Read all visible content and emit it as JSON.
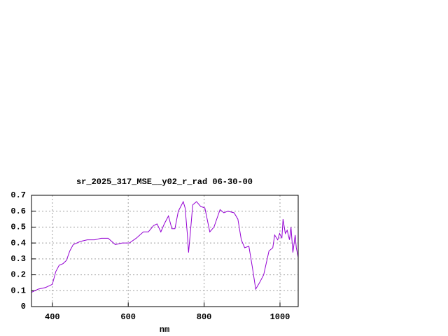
{
  "chart_data": {
    "type": "line",
    "title": "sr_2025_317_MSE__y02_r_rad 06-30-00",
    "xlabel": "nm",
    "x": [
      345,
      363,
      382,
      391,
      400,
      409,
      418,
      428,
      437,
      446,
      455,
      474,
      492,
      511,
      529,
      547,
      566,
      584,
      603,
      621,
      640,
      653,
      667,
      676,
      686,
      695,
      706,
      715,
      723,
      732,
      745,
      750,
      756,
      759,
      765,
      770,
      780,
      791,
      802,
      815,
      826,
      842,
      852,
      863,
      879,
      889,
      898,
      907,
      918,
      927,
      936,
      946,
      957,
      971,
      981,
      986,
      994,
      999,
      1005,
      1008,
      1014,
      1019,
      1025,
      1029,
      1034,
      1040,
      1043,
      1048
    ],
    "series": [
      {
        "color": "#9400d3",
        "values": [
          0.09,
          0.11,
          0.12,
          0.13,
          0.14,
          0.22,
          0.26,
          0.27,
          0.29,
          0.35,
          0.39,
          0.41,
          0.42,
          0.42,
          0.43,
          0.43,
          0.39,
          0.4,
          0.4,
          0.43,
          0.47,
          0.47,
          0.51,
          0.52,
          0.47,
          0.52,
          0.57,
          0.49,
          0.49,
          0.6,
          0.66,
          0.62,
          0.45,
          0.34,
          0.5,
          0.64,
          0.66,
          0.63,
          0.62,
          0.47,
          0.5,
          0.61,
          0.59,
          0.6,
          0.59,
          0.55,
          0.42,
          0.37,
          0.38,
          0.25,
          0.11,
          0.15,
          0.2,
          0.35,
          0.37,
          0.45,
          0.42,
          0.46,
          0.43,
          0.55,
          0.46,
          0.48,
          0.42,
          0.5,
          0.34,
          0.45,
          0.37,
          0.31
        ]
      }
    ],
    "xlim": [
      345,
      1048
    ],
    "ylim": [
      0,
      0.7
    ],
    "xticks": [
      400,
      600,
      800,
      1000
    ],
    "yticks": [
      0,
      0.1,
      0.2,
      0.3,
      0.4,
      0.5,
      0.6,
      0.7
    ],
    "grid": true
  }
}
